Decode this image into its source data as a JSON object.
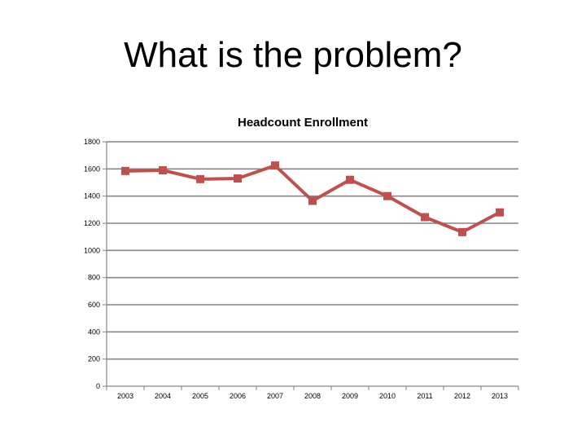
{
  "slide": {
    "title": "What is the problem?"
  },
  "colors": {
    "series": "#c0504d",
    "gridline": "#868686",
    "axis": "#868686"
  },
  "chart_data": {
    "type": "line",
    "title": "Headcount Enrollment",
    "xlabel": "",
    "ylabel": "",
    "categories": [
      "2003",
      "2004",
      "2005",
      "2006",
      "2007",
      "2008",
      "2009",
      "2010",
      "2011",
      "2012",
      "2013"
    ],
    "series": [
      {
        "values": [
          1585,
          1590,
          1525,
          1530,
          1625,
          1365,
          1520,
          1400,
          1245,
          1135,
          1280
        ],
        "marker": "square"
      }
    ],
    "ylim": [
      0,
      1800
    ],
    "yticks": [
      0,
      200,
      400,
      600,
      800,
      1000,
      1200,
      1400,
      1600,
      1800
    ],
    "grid": true,
    "legend": "none"
  }
}
